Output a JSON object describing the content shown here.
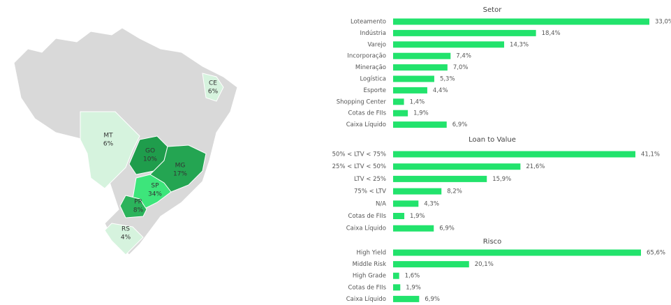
{
  "map": {
    "regions": [
      "CE",
      "MT",
      "GO",
      "MG",
      "SP",
      "PR",
      "RS"
    ],
    "values": [
      6,
      6,
      10,
      17,
      34,
      8,
      4
    ],
    "value_labels": [
      "6%",
      "6%",
      "10%",
      "17%",
      "34%",
      "8%",
      "4%"
    ],
    "colors": [
      "#d6f3de",
      "#d6f3de",
      "#1f9d4c",
      "#24a552",
      "#3de57b",
      "#2bb35b",
      "#d6f3de"
    ]
  },
  "chart_data": [
    {
      "type": "barh",
      "title": "Setor",
      "color": "#22e36c",
      "categories": [
        "Loteamento",
        "Indústria",
        "Varejo",
        "Incorporação",
        "Mineração",
        "Logística",
        "Esporte",
        "Shopping Center",
        "Cotas de FIIs",
        "Caixa Líquido"
      ],
      "values": [
        33.0,
        18.4,
        14.3,
        7.4,
        7.0,
        5.3,
        4.4,
        1.4,
        1.9,
        6.9
      ],
      "value_labels": [
        "33,0%",
        "18,4%",
        "14,3%",
        "7,4%",
        "7,0%",
        "5,3%",
        "4,4%",
        "1,4%",
        "1,9%",
        "6,9%"
      ]
    },
    {
      "type": "barh",
      "title": "Loan to Value",
      "color": "#22e36c",
      "categories": [
        "50% < LTV < 75%",
        "25% < LTV < 50%",
        "LTV < 25%",
        "75% < LTV",
        "N/A",
        "Cotas de FIIs",
        "Caixa Líquido"
      ],
      "values": [
        41.1,
        21.6,
        15.9,
        8.2,
        4.3,
        1.9,
        6.9
      ],
      "value_labels": [
        "41,1%",
        "21,6%",
        "15,9%",
        "8,2%",
        "4,3%",
        "1,9%",
        "6,9%"
      ]
    },
    {
      "type": "barh",
      "title": "Risco",
      "color": "#22e36c",
      "categories": [
        "High Yield",
        "Middle Risk",
        "High Grade",
        "Cotas de FIIs",
        "Caixa Líquido"
      ],
      "values": [
        65.6,
        20.1,
        1.6,
        1.9,
        6.9
      ],
      "value_labels": [
        "65,6%",
        "20,1%",
        "1,6%",
        "1,9%",
        "6,9%"
      ]
    }
  ]
}
